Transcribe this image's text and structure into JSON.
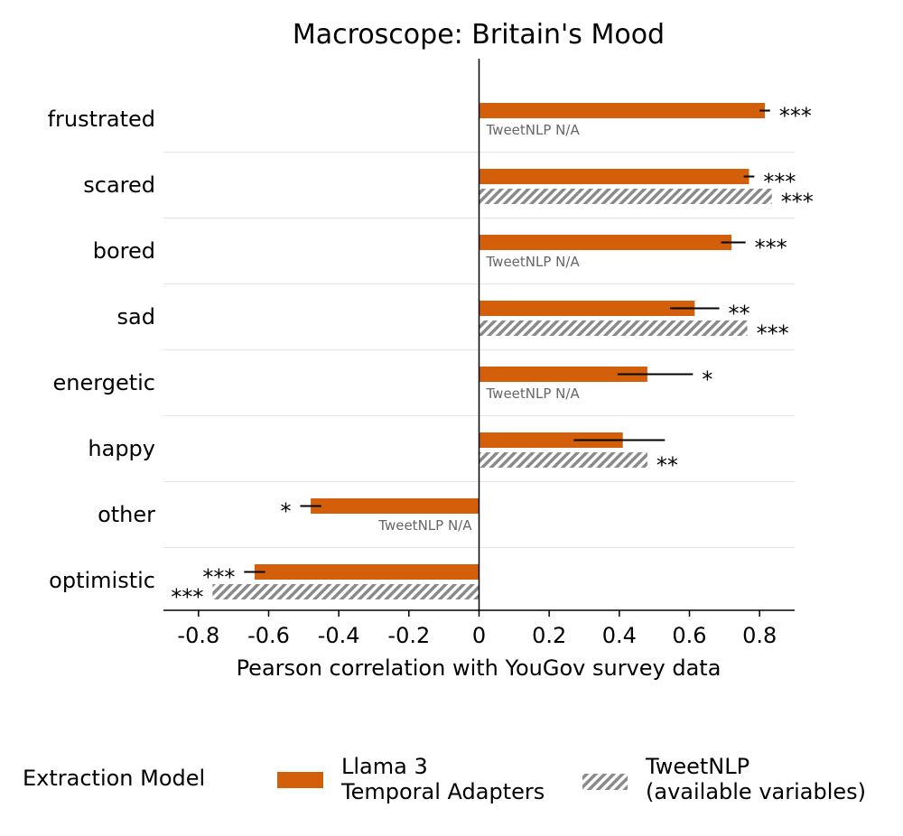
{
  "chart_data": {
    "type": "bar",
    "orientation": "horizontal",
    "title": "Macroscope: Britain's Mood",
    "xlabel": "Pearson correlation with YouGov survey data",
    "ylabel": "",
    "xlim": [
      -0.9,
      0.9
    ],
    "xticks": [
      -0.8,
      -0.6,
      -0.4,
      -0.2,
      0,
      0.2,
      0.4,
      0.6,
      0.8
    ],
    "xtick_labels": [
      "-0.8",
      "-0.6",
      "-0.4",
      "-0.2",
      "0",
      "0.2",
      "0.4",
      "0.6",
      "0.8"
    ],
    "categories": [
      "frustrated",
      "scared",
      "bored",
      "sad",
      "energetic",
      "happy",
      "other",
      "optimistic"
    ],
    "series": [
      {
        "name": "Llama 3 Temporal Adapters",
        "color": "#d35f0a",
        "pattern": "solid",
        "values": [
          0.815,
          0.77,
          0.72,
          0.615,
          0.48,
          0.41,
          -0.48,
          -0.64
        ],
        "error_low": [
          0.8,
          0.755,
          0.69,
          0.545,
          0.395,
          0.27,
          -0.51,
          -0.67
        ],
        "error_high": [
          0.83,
          0.785,
          0.76,
          0.685,
          0.61,
          0.53,
          -0.45,
          -0.61
        ],
        "significance": [
          "***",
          "***",
          "***",
          "**",
          "*",
          "",
          "*",
          "***"
        ]
      },
      {
        "name": "TweetNLP (available variables)",
        "color": "#8a8a8a",
        "pattern": "hatched",
        "values": [
          null,
          0.835,
          null,
          0.765,
          null,
          0.48,
          null,
          -0.76
        ],
        "significance": [
          "",
          "***",
          "",
          "***",
          "",
          "**",
          "",
          "***"
        ]
      }
    ],
    "na_label": "TweetNLP N/A",
    "legend": {
      "title": "Extraction Model",
      "placement": "bottom",
      "entries": [
        {
          "line1": "Llama 3",
          "line2": "Temporal Adapters"
        },
        {
          "line1": "TweetNLP",
          "line2": "(available variables)"
        }
      ]
    },
    "grid": "horizontal separators between categories"
  }
}
